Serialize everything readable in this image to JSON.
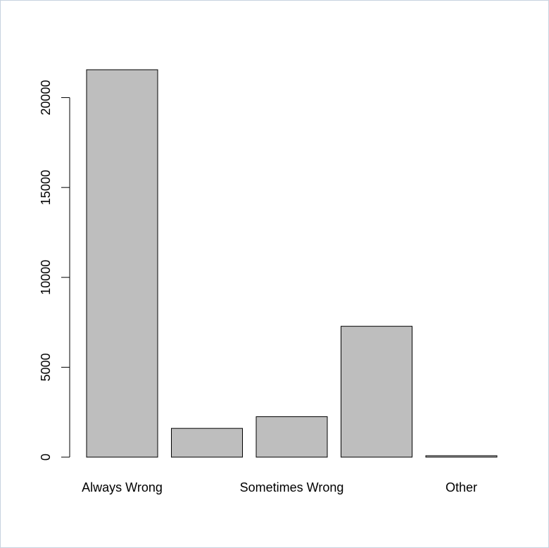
{
  "chart_data": {
    "type": "bar",
    "categories": [
      "Always Wrong",
      "",
      "Sometimes Wrong",
      "",
      "Other"
    ],
    "values": [
      21550,
      1600,
      2250,
      7280,
      80
    ],
    "ylim": [
      0,
      21550
    ],
    "yticks": [
      0,
      5000,
      10000,
      15000,
      20000
    ],
    "ytick_labels": [
      "0",
      "5000",
      "10000",
      "15000",
      "20000"
    ],
    "grid": false,
    "title": "",
    "xlabel": "",
    "ylabel": "",
    "bar_color": "#bebebe",
    "edge_color": "#000000"
  }
}
